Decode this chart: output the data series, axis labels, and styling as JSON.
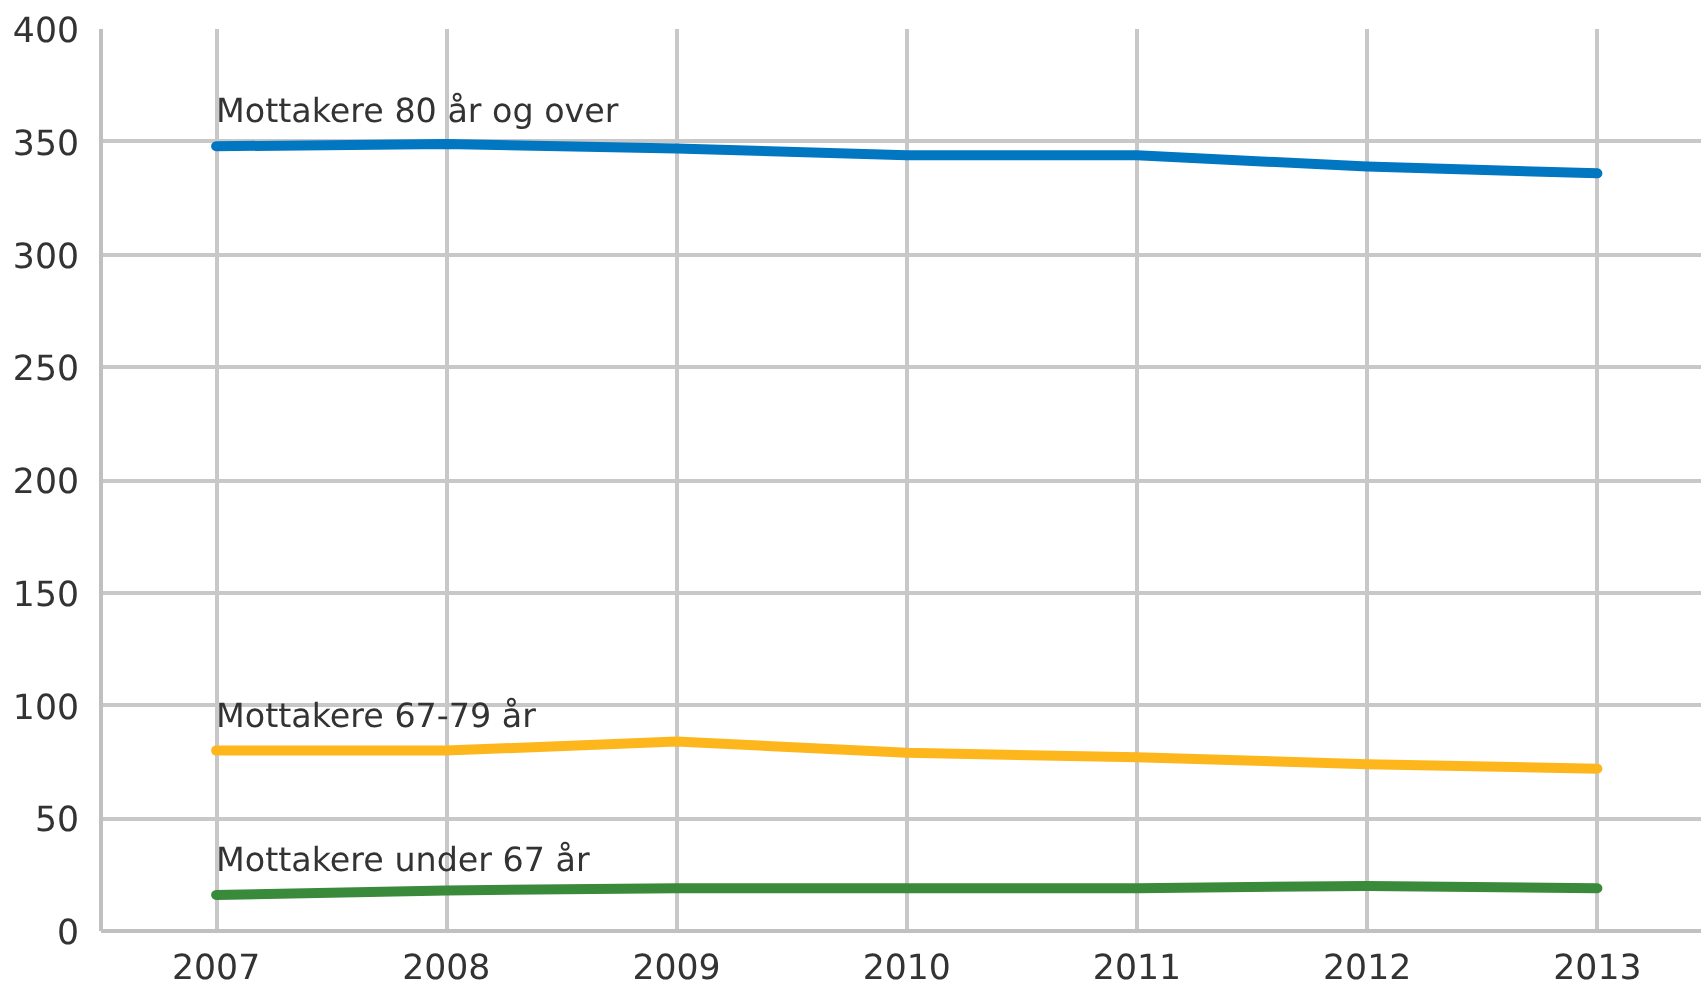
{
  "chart_data": {
    "type": "line",
    "x": [
      2007,
      2008,
      2009,
      2010,
      2011,
      2012,
      2013
    ],
    "series": [
      {
        "name": "Mottakere 80 år og over",
        "color": "#0077c0",
        "values": [
          348,
          349,
          347,
          344,
          344,
          339,
          336
        ]
      },
      {
        "name": "Mottakere 67-79 år",
        "color": "#fdb71c",
        "values": [
          80,
          80,
          84,
          79,
          77,
          74,
          72
        ]
      },
      {
        "name": "Mottakere under 67 år",
        "color": "#3a8a3c",
        "values": [
          16,
          18,
          19,
          19,
          19,
          20,
          19
        ]
      }
    ],
    "xlim": [
      2006.5,
      2013.45
    ],
    "xticks": [
      2007,
      2008,
      2009,
      2010,
      2011,
      2012,
      2013
    ],
    "ylim": [
      0,
      400
    ],
    "yticks": [
      0,
      50,
      100,
      150,
      200,
      250,
      300,
      350,
      400
    ],
    "grid": true,
    "marker": "none",
    "line_style": "solid",
    "legend": false
  }
}
